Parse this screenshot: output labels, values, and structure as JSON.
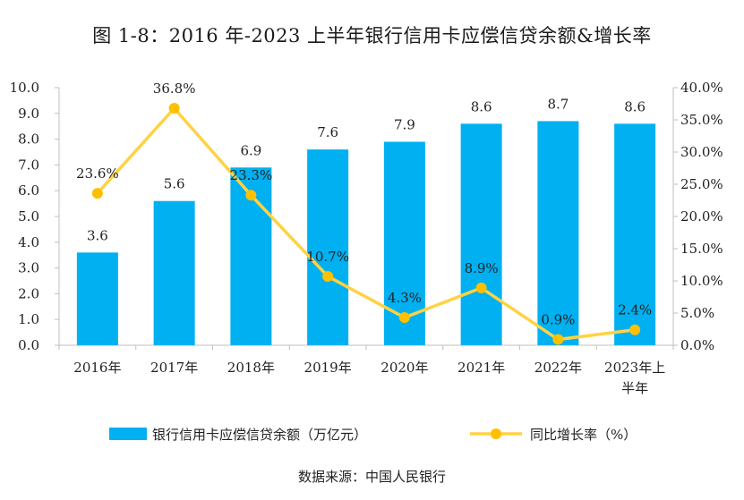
{
  "chart_data": {
    "type": "bar",
    "title": "图 1-8：2016 年-2023 上半年银行信用卡应偿信贷余额&增长率",
    "source": "数据来源：中国人民银行",
    "categories": [
      "2016年",
      "2017年",
      "2018年",
      "2019年",
      "2020年",
      "2021年",
      "2022年",
      "2023年上半年"
    ],
    "category_lines": [
      [
        "2016年"
      ],
      [
        "2017年"
      ],
      [
        "2018年"
      ],
      [
        "2019年"
      ],
      [
        "2020年"
      ],
      [
        "2021年"
      ],
      [
        "2022年"
      ],
      [
        "2023年上",
        "半年"
      ]
    ],
    "series": [
      {
        "name": "银行信用卡应偿信贷余额（万亿元）",
        "type": "bar",
        "axis": "left",
        "color": "#00b0f0",
        "values": [
          3.6,
          5.6,
          6.9,
          7.6,
          7.9,
          8.6,
          8.7,
          8.6
        ],
        "labels": [
          "3.6",
          "5.6",
          "6.9",
          "7.6",
          "7.9",
          "8.6",
          "8.7",
          "8.6"
        ]
      },
      {
        "name": "同比增长率（%）",
        "type": "line",
        "axis": "right",
        "color": "#ffd243",
        "marker_color": "#ffc000",
        "values": [
          23.6,
          36.8,
          23.3,
          10.7,
          4.3,
          8.9,
          0.9,
          2.4
        ],
        "labels": [
          "23.6%",
          "36.8%",
          "23.3%",
          "10.7%",
          "4.3%",
          "8.9%",
          "0.9%",
          "2.4%"
        ]
      }
    ],
    "y_left": {
      "min": 0,
      "max": 10,
      "step": 1,
      "ticks": [
        "0.0",
        "1.0",
        "2.0",
        "3.0",
        "4.0",
        "5.0",
        "6.0",
        "7.0",
        "8.0",
        "9.0",
        "10.0"
      ]
    },
    "y_right": {
      "min": 0,
      "max": 40,
      "step": 5,
      "ticks": [
        "0.0%",
        "5.0%",
        "10.0%",
        "15.0%",
        "20.0%",
        "25.0%",
        "30.0%",
        "35.0%",
        "40.0%"
      ]
    },
    "grid": false,
    "legend_position": "bottom"
  }
}
